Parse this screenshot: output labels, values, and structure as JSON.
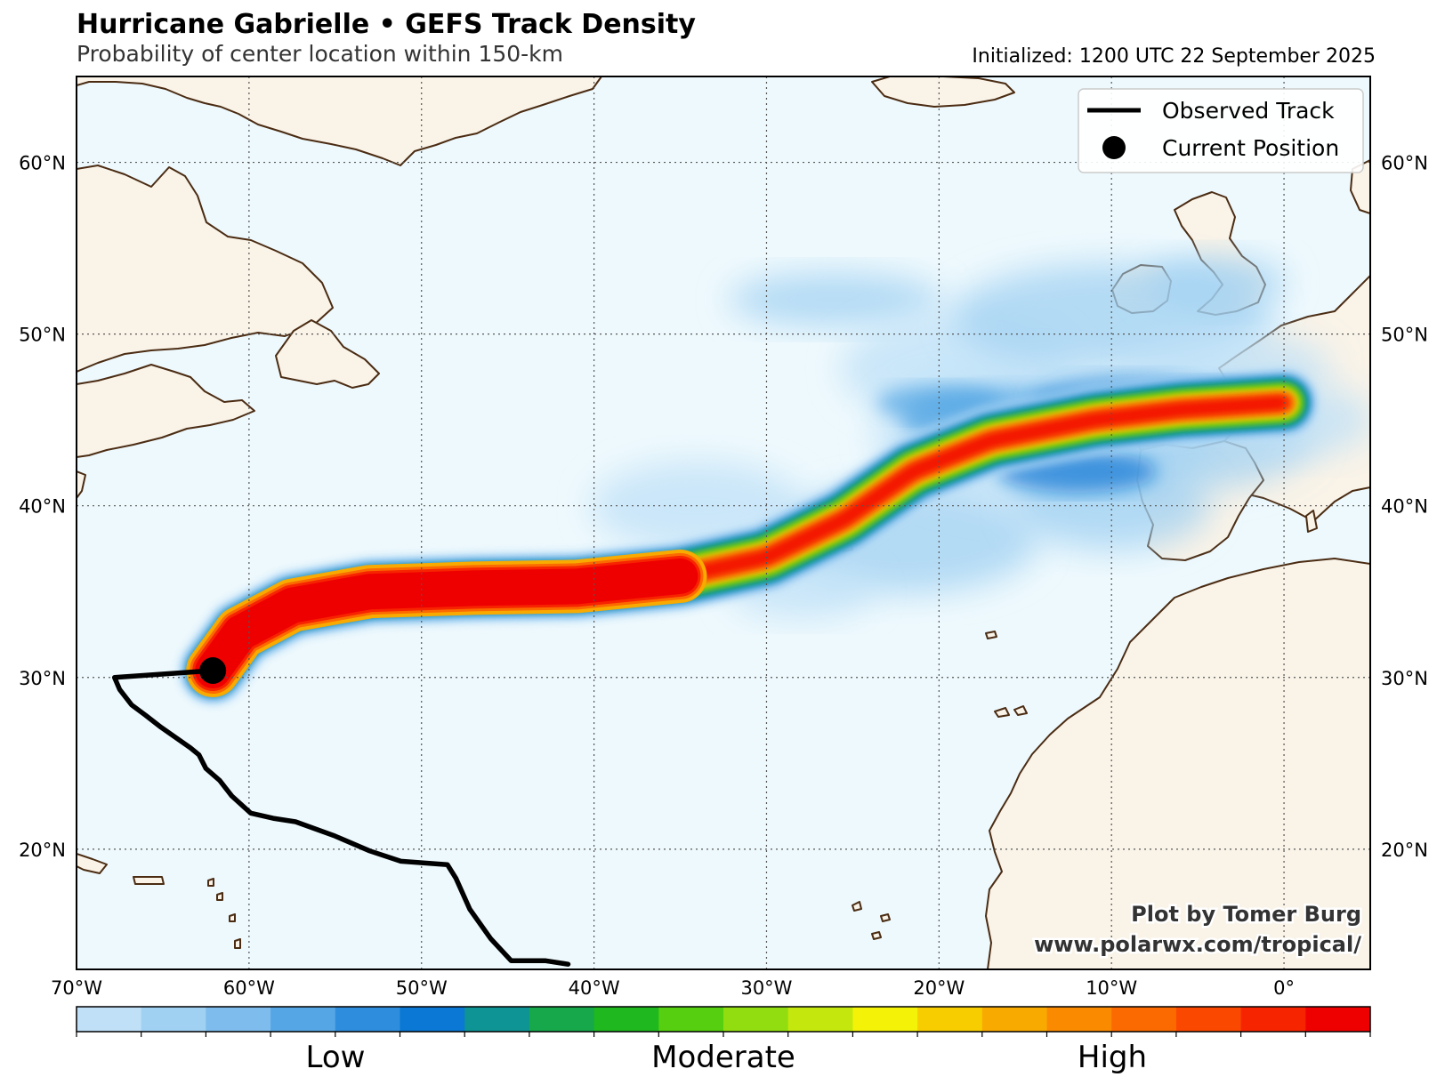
{
  "header": {
    "title": "Hurricane Gabrielle • GEFS Track Density",
    "subtitle": "Probability of center location within 150-km",
    "initialized": "Initialized: 1200 UTC 22 September 2025"
  },
  "legend": {
    "observed_track": "Observed Track",
    "current_position": "Current Position"
  },
  "credit": {
    "line1": "Plot by Tomer Burg",
    "line2": "www.polarwx.com/tropical/"
  },
  "axes": {
    "lon_ticks": [
      "70°W",
      "60°W",
      "50°W",
      "40°W",
      "30°W",
      "20°W",
      "10°W",
      "0°"
    ],
    "lat_ticks": [
      "60°N",
      "50°N",
      "40°N",
      "30°N",
      "20°N"
    ]
  },
  "colorbar": {
    "labels": [
      "Low",
      "Moderate",
      "High"
    ],
    "colors": [
      "#bfe0f7",
      "#a0d0f2",
      "#7dbcec",
      "#55a6e4",
      "#2e8ddc",
      "#0a78d4",
      "#0e9494",
      "#16a84a",
      "#1fb81f",
      "#55cf10",
      "#92dd0f",
      "#c4e70d",
      "#f4f207",
      "#f7cd00",
      "#f9aa00",
      "#fa8a00",
      "#fb6a00",
      "#fb4800",
      "#f72400",
      "#ef0000"
    ]
  },
  "map": {
    "lon_range": [
      -70,
      5
    ],
    "lat_range": [
      13,
      65
    ],
    "ocean_color": "#eef9fd",
    "land_color": "#f9f3e8",
    "coast_color": "#4b2c13",
    "current_position": {
      "lon": -62.1,
      "lat": 30.4
    },
    "observed_track": [
      [
        -41.5,
        13.3
      ],
      [
        -42.8,
        13.5
      ],
      [
        -44.8,
        13.5
      ],
      [
        -46.0,
        14.8
      ],
      [
        -47.2,
        16.5
      ],
      [
        -48.0,
        18.3
      ],
      [
        -48.5,
        19.1
      ],
      [
        -51.2,
        19.3
      ],
      [
        -53.0,
        19.9
      ],
      [
        -55.1,
        20.8
      ],
      [
        -57.3,
        21.6
      ],
      [
        -58.6,
        21.8
      ],
      [
        -59.9,
        22.1
      ],
      [
        -61.0,
        23.1
      ],
      [
        -61.7,
        24.0
      ],
      [
        -62.5,
        24.7
      ],
      [
        -62.9,
        25.5
      ],
      [
        -63.4,
        25.9
      ],
      [
        -65.1,
        27.1
      ],
      [
        -66.0,
        27.8
      ],
      [
        -66.8,
        28.4
      ],
      [
        -67.5,
        29.3
      ],
      [
        -67.8,
        30.0
      ]
    ],
    "density_core_path": [
      [
        -62.1,
        30.4
      ],
      [
        -60.5,
        32.6
      ],
      [
        -57.5,
        34.2
      ],
      [
        -53.0,
        35.0
      ],
      [
        -47.0,
        35.2
      ],
      [
        -41.0,
        35.3
      ],
      [
        -35.0,
        35.9
      ],
      [
        -30.0,
        37.0
      ],
      [
        -25.5,
        39.2
      ],
      [
        -21.5,
        42.0
      ],
      [
        -17.0,
        43.8
      ],
      [
        -11.0,
        45.0
      ],
      [
        -6.0,
        45.6
      ],
      [
        0.0,
        46.0
      ]
    ]
  }
}
